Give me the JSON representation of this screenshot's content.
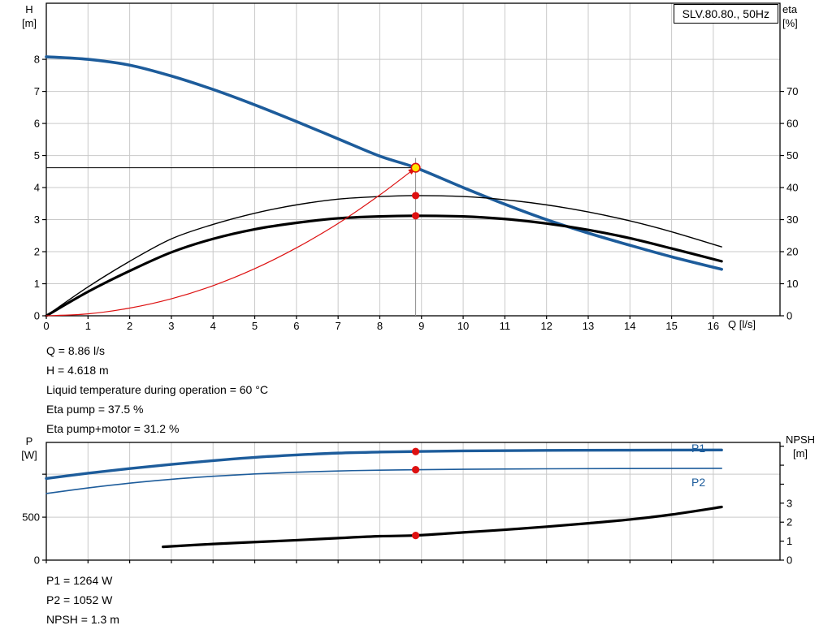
{
  "header": {
    "pump_type": "SLV.80.80., 50Hz"
  },
  "readouts": {
    "duty": [
      "Q = 8.86 l/s",
      "H = 4.618 m",
      "Liquid temperature during operation = 60 °C",
      "Eta pump = 37.5 %",
      "Eta pump+motor = 31.2 %"
    ],
    "power": [
      "P1 = 1264 W",
      "P2 = 1052 W",
      "NPSH = 1.3 m"
    ]
  },
  "colors": {
    "curve_blue": "#1d5c9b",
    "marker_red": "#dd1111",
    "duty_yellow": "#ffe600",
    "grid": "#c9c9c9",
    "frame": "#000000",
    "guide_gray": "#8c8c8c"
  },
  "chart_data": [
    {
      "name": "hq-eta-chart",
      "type": "line",
      "title": "SLV.80.80., 50Hz",
      "x_title": "Q [l/s]",
      "y_left_title": "H",
      "y_left_unit": "[m]",
      "y_right_title": "eta",
      "y_right_unit": "[%]",
      "x_range": [
        0,
        17.6
      ],
      "y_left_range": [
        0,
        9.75
      ],
      "y_right_range": [
        0,
        97.5
      ],
      "x_ticks": [
        [
          0,
          "0"
        ],
        [
          1,
          "1"
        ],
        [
          2,
          "2"
        ],
        [
          3,
          "3"
        ],
        [
          4,
          "4"
        ],
        [
          5,
          "5"
        ],
        [
          6,
          "6"
        ],
        [
          7,
          "7"
        ],
        [
          8,
          "8"
        ],
        [
          9,
          "9"
        ],
        [
          10,
          "10"
        ],
        [
          11,
          "11"
        ],
        [
          12,
          "12"
        ],
        [
          13,
          "13"
        ],
        [
          14,
          "14"
        ],
        [
          15,
          "15"
        ],
        [
          16,
          "16"
        ]
      ],
      "y_left_ticks": [
        [
          0,
          "0"
        ],
        [
          1,
          "1"
        ],
        [
          2,
          "2"
        ],
        [
          3,
          "3"
        ],
        [
          4,
          "4"
        ],
        [
          5,
          "5"
        ],
        [
          6,
          "6"
        ],
        [
          7,
          "7"
        ],
        [
          8,
          "8"
        ]
      ],
      "y_right_ticks": [
        [
          0,
          "0"
        ],
        [
          10,
          "10"
        ],
        [
          20,
          "20"
        ],
        [
          30,
          "30"
        ],
        [
          40,
          "40"
        ],
        [
          50,
          "50"
        ],
        [
          60,
          "60"
        ],
        [
          70,
          "70"
        ]
      ],
      "x_gridlines": [
        1,
        2,
        3,
        4,
        5,
        6,
        7,
        8,
        9,
        10,
        11,
        12,
        13,
        14,
        15,
        16
      ],
      "y_gridlines": [
        1,
        2,
        3,
        4,
        5,
        6,
        7,
        8
      ],
      "series": [
        {
          "name": "pump-curve",
          "label": "",
          "color": "#1d5c9b",
          "width": 3.6,
          "axis": "left",
          "points": [
            [
              0,
              8.08
            ],
            [
              1,
              8.0
            ],
            [
              2,
              7.82
            ],
            [
              3,
              7.48
            ],
            [
              4,
              7.06
            ],
            [
              5,
              6.58
            ],
            [
              6,
              6.06
            ],
            [
              7,
              5.52
            ],
            [
              8,
              4.98
            ],
            [
              8.86,
              4.62
            ],
            [
              10,
              4.0
            ],
            [
              11,
              3.48
            ],
            [
              12,
              3.0
            ],
            [
              13,
              2.58
            ],
            [
              14,
              2.2
            ],
            [
              15,
              1.84
            ],
            [
              16.2,
              1.45
            ]
          ]
        },
        {
          "name": "eta-pump-curve",
          "label": "",
          "color": "#000000",
          "width": 1.4,
          "axis": "right",
          "points": [
            [
              0,
              0
            ],
            [
              1,
              9
            ],
            [
              2,
              17
            ],
            [
              3,
              24
            ],
            [
              4,
              28.5
            ],
            [
              5,
              32
            ],
            [
              6,
              34.6
            ],
            [
              7,
              36.4
            ],
            [
              8,
              37.2
            ],
            [
              8.86,
              37.5
            ],
            [
              10,
              37.2
            ],
            [
              11,
              36.2
            ],
            [
              12,
              34.6
            ],
            [
              13,
              32.4
            ],
            [
              14,
              29.6
            ],
            [
              15,
              26.2
            ],
            [
              16.2,
              21.5
            ]
          ]
        },
        {
          "name": "eta-pump-motor-curve",
          "label": "",
          "color": "#000000",
          "width": 3.2,
          "axis": "right",
          "points": [
            [
              0,
              0
            ],
            [
              1,
              7.5
            ],
            [
              2,
              14
            ],
            [
              3,
              19.8
            ],
            [
              4,
              24
            ],
            [
              5,
              27
            ],
            [
              6,
              29
            ],
            [
              7,
              30.4
            ],
            [
              8,
              31
            ],
            [
              8.86,
              31.2
            ],
            [
              10,
              31
            ],
            [
              11,
              30.2
            ],
            [
              12,
              28.8
            ],
            [
              13,
              26.8
            ],
            [
              14,
              24.2
            ],
            [
              15,
              21
            ],
            [
              16.2,
              17
            ]
          ]
        },
        {
          "name": "system-curve",
          "label": "",
          "color": "#dd1111",
          "width": 1.2,
          "axis": "left",
          "arrow": true,
          "points": [
            [
              0,
              0
            ],
            [
              1,
              0.06
            ],
            [
              2,
              0.24
            ],
            [
              3,
              0.53
            ],
            [
              4,
              0.94
            ],
            [
              5,
              1.47
            ],
            [
              6,
              2.12
            ],
            [
              7,
              2.88
            ],
            [
              8,
              3.77
            ],
            [
              8.86,
              4.618
            ]
          ]
        }
      ],
      "guides": {
        "q": 8.86,
        "h": 4.618
      },
      "markers": [
        {
          "q": 8.86,
          "v": 4.618,
          "axis": "left",
          "style": "duty",
          "name": "duty-point-marker"
        },
        {
          "q": 8.86,
          "v": 37.5,
          "axis": "right",
          "style": "dot",
          "name": "eta-pump-point"
        },
        {
          "q": 8.86,
          "v": 31.2,
          "axis": "right",
          "style": "dot",
          "name": "eta-pump-motor-point"
        }
      ],
      "duty_values": {
        "q_lps": 8.86,
        "h_m": 4.618,
        "eta_pump_pct": 37.5,
        "eta_pump_motor_pct": 31.2,
        "liquid_temp_c": 60
      }
    },
    {
      "name": "power-npsh-chart",
      "type": "line",
      "x_title": "",
      "y_left_title": "P",
      "y_left_unit": "[W]",
      "y_right_title": "NPSH",
      "y_right_unit": "[m]",
      "x_range": [
        0,
        17.6
      ],
      "y_left_range": [
        0,
        1370
      ],
      "y_right_range": [
        0,
        6.2
      ],
      "x_ticks": [
        [
          0,
          ""
        ],
        [
          1,
          ""
        ],
        [
          2,
          ""
        ],
        [
          3,
          ""
        ],
        [
          4,
          ""
        ],
        [
          5,
          ""
        ],
        [
          6,
          ""
        ],
        [
          7,
          ""
        ],
        [
          8,
          ""
        ],
        [
          9,
          ""
        ],
        [
          10,
          ""
        ],
        [
          11,
          ""
        ],
        [
          12,
          ""
        ],
        [
          13,
          ""
        ],
        [
          14,
          ""
        ],
        [
          15,
          ""
        ],
        [
          16,
          ""
        ]
      ],
      "y_left_ticks": [
        [
          0,
          "0"
        ],
        [
          500,
          "500"
        ],
        [
          1000,
          ""
        ]
      ],
      "y_right_ticks": [
        [
          0,
          "0"
        ],
        [
          1,
          "1"
        ],
        [
          2,
          "2"
        ],
        [
          3,
          "3"
        ],
        [
          4,
          ""
        ],
        [
          5,
          ""
        ],
        [
          6,
          ""
        ]
      ],
      "x_gridlines": [
        1,
        2,
        3,
        4,
        5,
        6,
        7,
        8,
        9,
        10,
        11,
        12,
        13,
        14,
        15,
        16
      ],
      "y_gridlines": [
        500,
        1000
      ],
      "series": [
        {
          "name": "p1-curve",
          "label": "P1",
          "color": "#1d5c9b",
          "width": 3.4,
          "axis": "left",
          "points": [
            [
              0,
              950
            ],
            [
              1,
              1012
            ],
            [
              2,
              1066
            ],
            [
              3,
              1114
            ],
            [
              4,
              1158
            ],
            [
              5,
              1196
            ],
            [
              6,
              1224
            ],
            [
              7,
              1246
            ],
            [
              8,
              1258
            ],
            [
              8.86,
              1264
            ],
            [
              10,
              1271
            ],
            [
              12,
              1277
            ],
            [
              14,
              1280
            ],
            [
              16.2,
              1282
            ]
          ]
        },
        {
          "name": "p2-curve",
          "label": "P2",
          "color": "#1d5c9b",
          "width": 1.6,
          "axis": "left",
          "points": [
            [
              0,
              775
            ],
            [
              1,
              840
            ],
            [
              2,
              896
            ],
            [
              3,
              941
            ],
            [
              4,
              976
            ],
            [
              5,
              1003
            ],
            [
              6,
              1023
            ],
            [
              7,
              1038
            ],
            [
              8,
              1047
            ],
            [
              8.86,
              1052
            ],
            [
              10,
              1058
            ],
            [
              12,
              1063
            ],
            [
              14,
              1066
            ],
            [
              16.2,
              1068
            ]
          ]
        },
        {
          "name": "npsh-curve",
          "label": "NPSH",
          "color": "#000000",
          "width": 3.2,
          "axis": "right",
          "points": [
            [
              2.8,
              0.7
            ],
            [
              4,
              0.85
            ],
            [
              5,
              0.95
            ],
            [
              6,
              1.05
            ],
            [
              7,
              1.16
            ],
            [
              8,
              1.26
            ],
            [
              8.86,
              1.3
            ],
            [
              10,
              1.46
            ],
            [
              11,
              1.6
            ],
            [
              12,
              1.76
            ],
            [
              13,
              1.94
            ],
            [
              14,
              2.14
            ],
            [
              15,
              2.4
            ],
            [
              16.2,
              2.8
            ]
          ]
        }
      ],
      "markers": [
        {
          "q": 8.86,
          "v": 1264,
          "axis": "left",
          "style": "dot",
          "name": "p1-point"
        },
        {
          "q": 8.86,
          "v": 1052,
          "axis": "left",
          "style": "dot",
          "name": "p2-point"
        },
        {
          "q": 8.86,
          "v": 1.3,
          "axis": "right",
          "style": "dot",
          "name": "npsh-point"
        }
      ],
      "duty_values": {
        "p1_w": 1264,
        "p2_w": 1052,
        "npsh_m": 1.3
      }
    }
  ]
}
